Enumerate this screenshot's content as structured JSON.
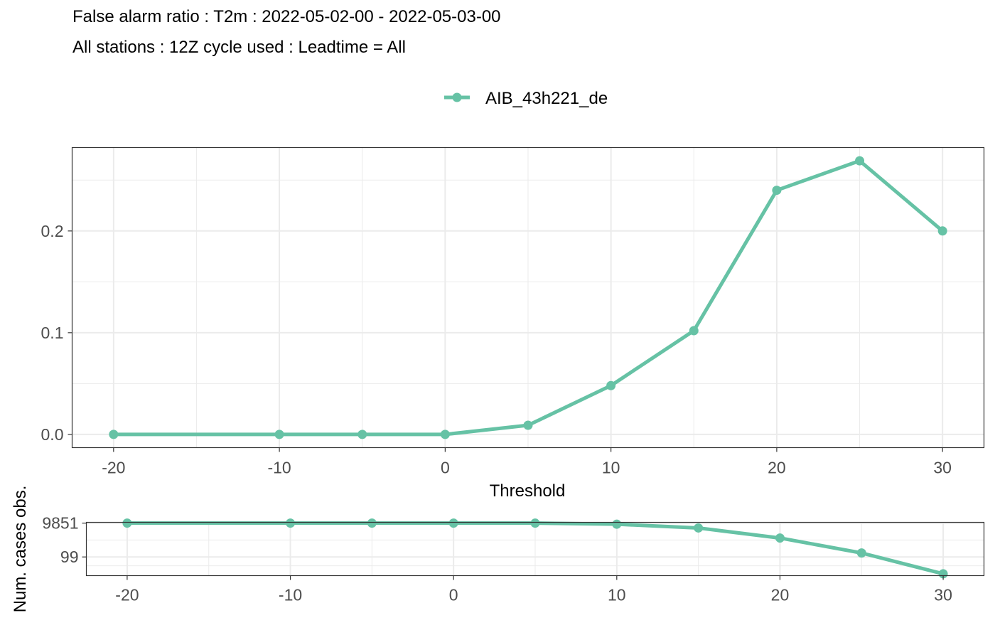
{
  "title_line1": "False alarm ratio : T2m : 2022-05-02-00 - 2022-05-03-00",
  "title_line2": "All stations : 12Z cycle used : Leadtime = All",
  "colors": {
    "series": "#66c2a5",
    "grid": "#ebebeb",
    "border": "#333333"
  },
  "chart_data": [
    {
      "type": "line",
      "series": [
        {
          "name": "AIB_43h221_de",
          "x": [
            -20,
            -10,
            -5,
            0,
            5,
            10,
            15,
            20,
            25,
            30
          ],
          "y": [
            0.0,
            0.0,
            0.0,
            0.0,
            0.009,
            0.048,
            0.102,
            0.24,
            0.269,
            0.2
          ]
        }
      ],
      "xlabel": "Threshold",
      "ylabel": "",
      "xlim": [
        -22.5,
        32.5
      ],
      "ylim": [
        -0.013,
        0.282
      ],
      "xticks": [
        "-20",
        "-10",
        "0",
        "10",
        "20",
        "30"
      ],
      "yticks": [
        "0.0",
        "0.1",
        "0.2"
      ],
      "legend": "top",
      "grid": true
    },
    {
      "type": "line",
      "series": [
        {
          "name": "AIB_43h221_de",
          "x": [
            -20,
            -10,
            -5,
            0,
            5,
            10,
            15,
            20,
            25,
            30
          ],
          "y": [
            9851,
            9851,
            9851,
            9851,
            9830,
            8500,
            5100,
            1300,
            170,
            10
          ]
        }
      ],
      "ylabel": "Num. cases obs.",
      "xlim": [
        -22.5,
        32.5
      ],
      "ylim": [
        7.8,
        11000
      ],
      "yscale": "log",
      "xticks": [
        "-20",
        "-10",
        "0",
        "10",
        "20",
        "30"
      ],
      "yticks": [
        "9851",
        "99"
      ],
      "grid": true
    }
  ]
}
